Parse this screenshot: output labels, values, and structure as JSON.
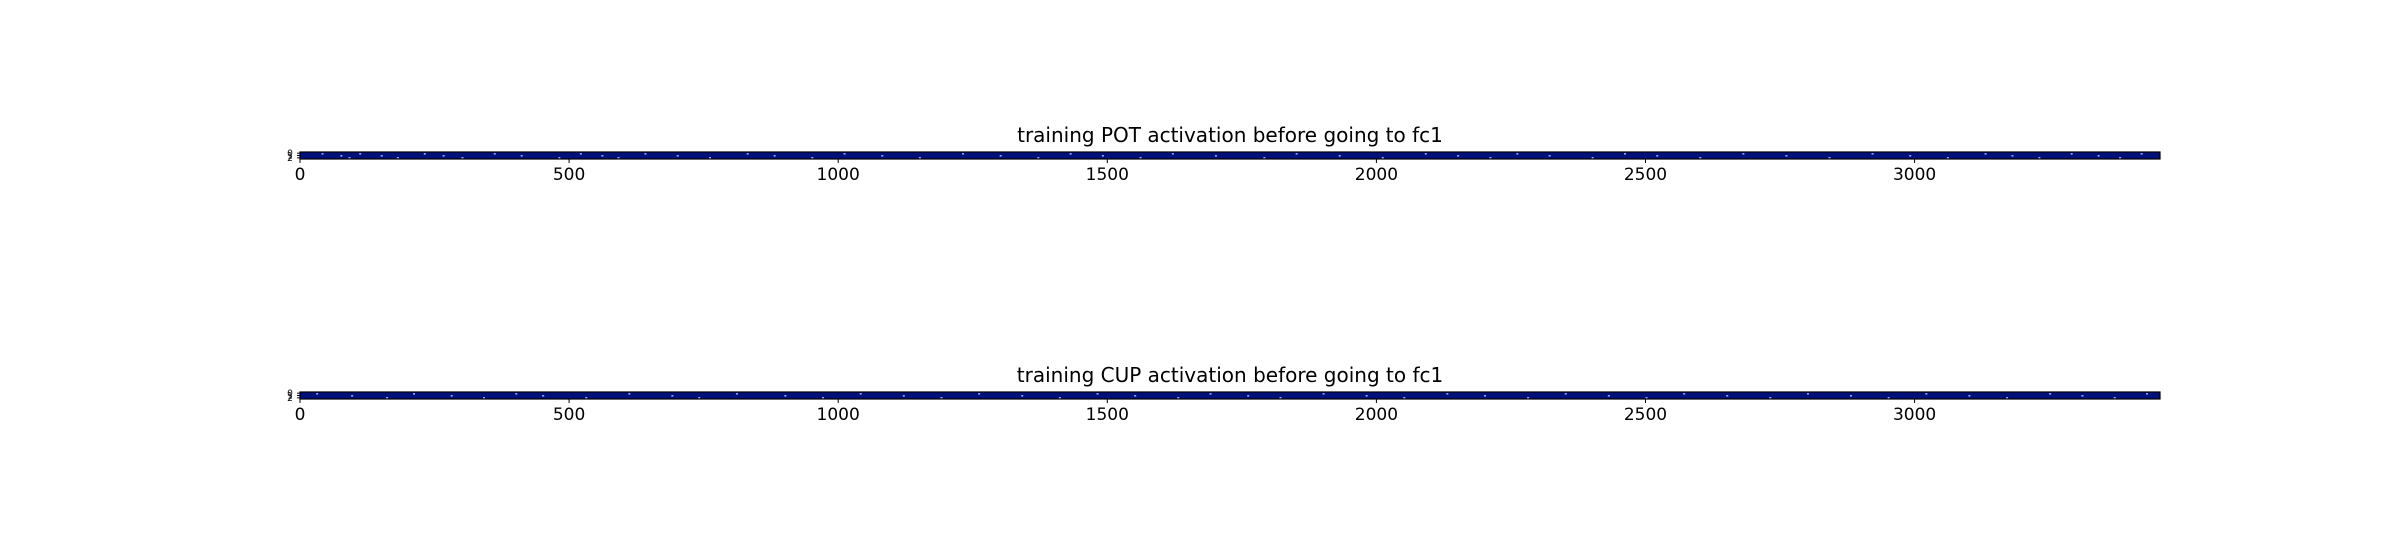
{
  "chart_data": [
    {
      "type": "heatmap",
      "title": "training POT activation before going to fc1",
      "xlabel": "",
      "ylabel": "",
      "xlim": [
        0,
        3456
      ],
      "x_ticks": [
        0,
        500,
        1000,
        1500,
        2000,
        2500,
        3000
      ],
      "x_tick_labels": [
        "0",
        "500",
        "1000",
        "1500",
        "2000",
        "2500",
        "3000"
      ],
      "y_ticks": [
        0,
        1,
        2
      ],
      "y_tick_labels": [
        "0",
        "1",
        "2"
      ],
      "rows": 3,
      "columns": 3456,
      "colormap": "dark blue background with sparse lighter activations",
      "background_color": "#00107a",
      "highlight_color": "#8fa6ff",
      "active_positions": [
        40,
        75,
        90,
        110,
        150,
        180,
        230,
        265,
        300,
        360,
        410,
        480,
        520,
        560,
        590,
        640,
        700,
        760,
        830,
        880,
        950,
        1010,
        1080,
        1150,
        1230,
        1300,
        1370,
        1430,
        1490,
        1560,
        1620,
        1700,
        1790,
        1850,
        1930,
        2010,
        2090,
        2150,
        2210,
        2260,
        2320,
        2400,
        2460,
        2520,
        2600,
        2680,
        2760,
        2840,
        2920,
        2990,
        3060,
        3130,
        3180,
        3230,
        3290,
        3340,
        3380,
        3420
      ]
    },
    {
      "type": "heatmap",
      "title": "training CUP activation before going to fc1",
      "xlabel": "",
      "ylabel": "",
      "xlim": [
        0,
        3456
      ],
      "x_ticks": [
        0,
        500,
        1000,
        1500,
        2000,
        2500,
        3000
      ],
      "x_tick_labels": [
        "0",
        "500",
        "1000",
        "1500",
        "2000",
        "2500",
        "3000"
      ],
      "y_ticks": [
        0,
        1,
        2
      ],
      "y_tick_labels": [
        "0",
        "1",
        "2"
      ],
      "rows": 3,
      "columns": 3456,
      "colormap": "dark blue background with sparse lighter activations",
      "background_color": "#00107a",
      "highlight_color": "#8fa6ff",
      "active_positions": [
        30,
        95,
        160,
        210,
        280,
        340,
        400,
        450,
        530,
        610,
        690,
        740,
        810,
        900,
        970,
        1040,
        1120,
        1190,
        1260,
        1340,
        1410,
        1480,
        1550,
        1630,
        1690,
        1760,
        1820,
        1900,
        1980,
        2050,
        2130,
        2200,
        2280,
        2350,
        2430,
        2500,
        2570,
        2650,
        2730,
        2800,
        2880,
        2950,
        3020,
        3100,
        3170,
        3250,
        3310,
        3370,
        3430
      ]
    }
  ]
}
